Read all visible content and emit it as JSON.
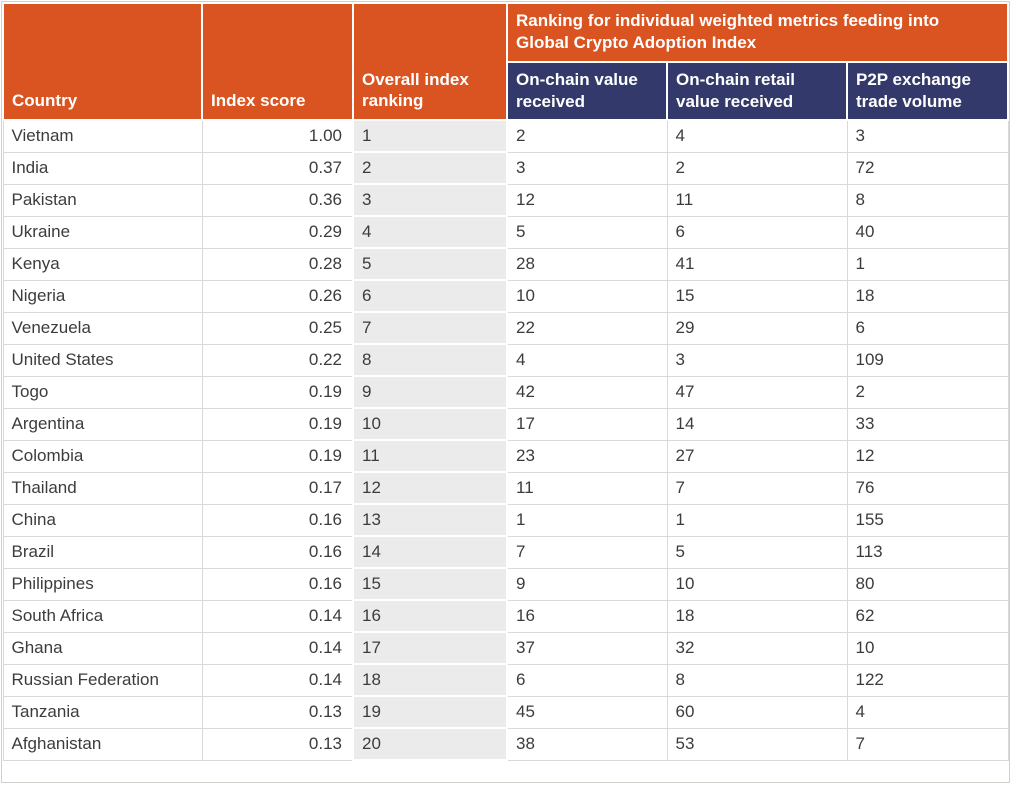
{
  "table": {
    "header": {
      "country": "Country",
      "index_score": "Index score",
      "overall_ranking": "Overall index ranking",
      "metrics_group": "Ranking for individual weighted metrics feeding into Global Crypto Adoption Index",
      "on_chain_value": "On-chain value received",
      "on_chain_retail": "On-chain retail value received",
      "p2p_volume": "P2P exchange trade volume"
    }
  },
  "chart_data": {
    "type": "table",
    "title": "Ranking for individual weighted metrics feeding into Global Crypto Adoption Index",
    "columns": [
      "Country",
      "Index score",
      "Overall index ranking",
      "On-chain value received",
      "On-chain retail value received",
      "P2P exchange trade volume"
    ],
    "rows": [
      [
        "Vietnam",
        "1.00",
        "1",
        "2",
        "4",
        "3"
      ],
      [
        "India",
        "0.37",
        "2",
        "3",
        "2",
        "72"
      ],
      [
        "Pakistan",
        "0.36",
        "3",
        "12",
        "11",
        "8"
      ],
      [
        "Ukraine",
        "0.29",
        "4",
        "5",
        "6",
        "40"
      ],
      [
        "Kenya",
        "0.28",
        "5",
        "28",
        "41",
        "1"
      ],
      [
        "Nigeria",
        "0.26",
        "6",
        "10",
        "15",
        "18"
      ],
      [
        "Venezuela",
        "0.25",
        "7",
        "22",
        "29",
        "6"
      ],
      [
        "United States",
        "0.22",
        "8",
        "4",
        "3",
        "109"
      ],
      [
        "Togo",
        "0.19",
        "9",
        "42",
        "47",
        "2"
      ],
      [
        "Argentina",
        "0.19",
        "10",
        "17",
        "14",
        "33"
      ],
      [
        "Colombia",
        "0.19",
        "11",
        "23",
        "27",
        "12"
      ],
      [
        "Thailand",
        "0.17",
        "12",
        "11",
        "7",
        "76"
      ],
      [
        "China",
        "0.16",
        "13",
        "1",
        "1",
        "155"
      ],
      [
        "Brazil",
        "0.16",
        "14",
        "7",
        "5",
        "113"
      ],
      [
        "Philippines",
        "0.16",
        "15",
        "9",
        "10",
        "80"
      ],
      [
        "South Africa",
        "0.14",
        "16",
        "16",
        "18",
        "62"
      ],
      [
        "Ghana",
        "0.14",
        "17",
        "37",
        "32",
        "10"
      ],
      [
        "Russian Federation",
        "0.14",
        "18",
        "6",
        "8",
        "122"
      ],
      [
        "Tanzania",
        "0.13",
        "19",
        "45",
        "60",
        "4"
      ],
      [
        "Afghanistan",
        "0.13",
        "20",
        "38",
        "53",
        "7"
      ]
    ]
  },
  "colors": {
    "header_orange": "#D95420",
    "header_navy": "#333A6B",
    "rank_col_gray": "#EBEBEB",
    "border_gray": "#D9D9D9",
    "text_dark": "#3C3C3C"
  }
}
